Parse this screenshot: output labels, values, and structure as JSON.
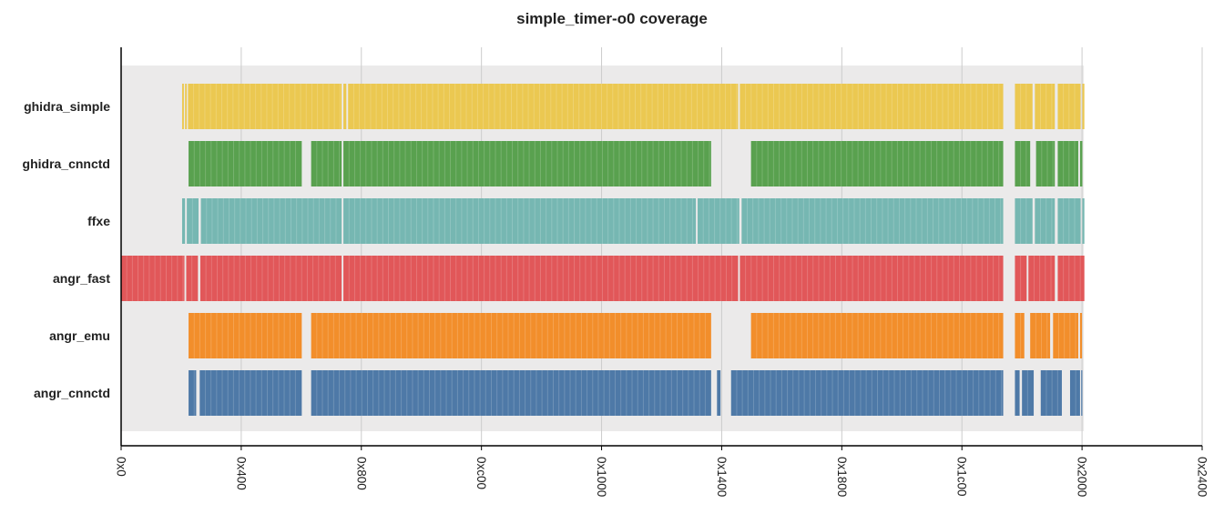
{
  "chart_data": {
    "type": "coverage",
    "title": "simple_timer-o0 coverage",
    "xlabel": "",
    "ylabel": "",
    "xlim": [
      0,
      9216
    ],
    "x_ticks": [
      {
        "value": 0,
        "label": "0x0"
      },
      {
        "value": 1024,
        "label": "0x400"
      },
      {
        "value": 2048,
        "label": "0x800"
      },
      {
        "value": 3072,
        "label": "0xc00"
      },
      {
        "value": 4096,
        "label": "0x1000"
      },
      {
        "value": 5120,
        "label": "0x1400"
      },
      {
        "value": 6144,
        "label": "0x1800"
      },
      {
        "value": 7168,
        "label": "0x1c00"
      },
      {
        "value": 8192,
        "label": "0x2000"
      },
      {
        "value": 9216,
        "label": "0x2400"
      }
    ],
    "grid": true,
    "plot_background": "#ebeaea",
    "background_range": [
      0,
      8208
    ],
    "series": [
      {
        "name": "ghidra_simple",
        "color": "#ebc851",
        "segments": [
          [
            520,
            535
          ],
          [
            545,
            560
          ],
          [
            570,
            1880
          ],
          [
            1895,
            1920
          ],
          [
            1935,
            5260
          ],
          [
            5275,
            7520
          ],
          [
            7620,
            7770
          ],
          [
            7790,
            7960
          ],
          [
            7985,
            8180
          ],
          [
            8195,
            8212
          ]
        ]
      },
      {
        "name": "ghidra_cnnctd",
        "color": "#59a14f",
        "segments": [
          [
            575,
            1540
          ],
          [
            1620,
            1880
          ],
          [
            1895,
            5030
          ],
          [
            5370,
            7520
          ],
          [
            7620,
            7750
          ],
          [
            7800,
            7960
          ],
          [
            7985,
            8160
          ],
          [
            8175,
            8195
          ]
        ]
      },
      {
        "name": "ffxe",
        "color": "#76b7b2",
        "segments": [
          [
            520,
            545
          ],
          [
            560,
            660
          ],
          [
            680,
            1880
          ],
          [
            1895,
            4900
          ],
          [
            4915,
            5270
          ],
          [
            5290,
            7520
          ],
          [
            7620,
            7770
          ],
          [
            7790,
            7960
          ],
          [
            7985,
            8180
          ],
          [
            8195,
            8212
          ]
        ]
      },
      {
        "name": "angr_fast",
        "color": "#e15759",
        "segments": [
          [
            0,
            540
          ],
          [
            555,
            655
          ],
          [
            675,
            1880
          ],
          [
            1895,
            5260
          ],
          [
            5275,
            7520
          ],
          [
            7620,
            7720
          ],
          [
            7735,
            7960
          ],
          [
            7985,
            8212
          ]
        ]
      },
      {
        "name": "angr_emu",
        "color": "#f28e2b",
        "segments": [
          [
            575,
            1540
          ],
          [
            1620,
            5030
          ],
          [
            5370,
            7520
          ],
          [
            7620,
            7700
          ],
          [
            7750,
            7920
          ],
          [
            7945,
            8160
          ],
          [
            8175,
            8192
          ]
        ]
      },
      {
        "name": "angr_cnnctd",
        "color": "#4e79a7",
        "segments": [
          [
            575,
            640
          ],
          [
            670,
            1540
          ],
          [
            1620,
            5030
          ],
          [
            5080,
            5110
          ],
          [
            5200,
            7520
          ],
          [
            7620,
            7660
          ],
          [
            7680,
            7780
          ],
          [
            7840,
            8020
          ],
          [
            8090,
            8175
          ],
          [
            8185,
            8195
          ]
        ]
      }
    ]
  }
}
